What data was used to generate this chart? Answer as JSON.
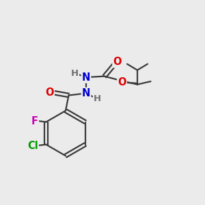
{
  "bg_color": "#ebebeb",
  "bond_color": "#3a3a3a",
  "bond_width": 1.6,
  "atom_colors": {
    "O": "#dd0000",
    "N": "#0000cc",
    "F": "#cc00bb",
    "Cl": "#009900",
    "H": "#707070",
    "C": "#3a3a3a"
  },
  "font_size": 10.5
}
